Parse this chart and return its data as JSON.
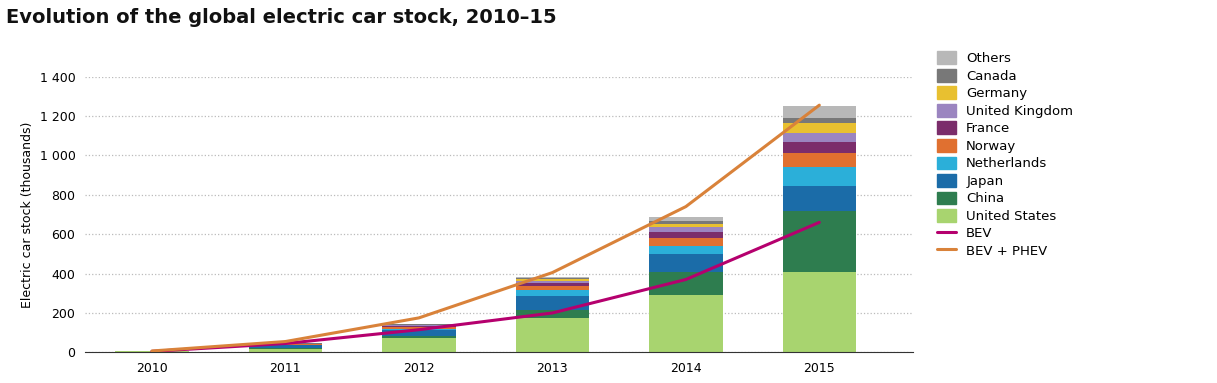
{
  "title": "Evolution of the global electric car stock, 2010–15",
  "ylabel": "Electric car stock (thousands)",
  "years": [
    2010,
    2011,
    2012,
    2013,
    2014,
    2015
  ],
  "categories": [
    "United States",
    "China",
    "Japan",
    "Netherlands",
    "Norway",
    "France",
    "United Kingdom",
    "Germany",
    "Canada",
    "Others"
  ],
  "colors": [
    "#a8d46f",
    "#2e7d4f",
    "#1b6ca8",
    "#2bafd9",
    "#e07030",
    "#7b2d6b",
    "#9b85c0",
    "#e8c030",
    "#787878",
    "#b8b8b8"
  ],
  "bar_data": {
    "United States": [
      5,
      17,
      71,
      172,
      290,
      410
    ],
    "China": [
      1,
      5,
      13,
      45,
      120,
      310
    ],
    "Japan": [
      1,
      15,
      28,
      68,
      88,
      124
    ],
    "Netherlands": [
      0,
      1,
      9,
      30,
      43,
      95
    ],
    "Norway": [
      0,
      2,
      8,
      20,
      42,
      73
    ],
    "France": [
      0,
      2,
      6,
      18,
      30,
      55
    ],
    "United Kingdom": [
      0,
      1,
      3,
      10,
      23,
      48
    ],
    "Germany": [
      0,
      1,
      2,
      7,
      18,
      50
    ],
    "Canada": [
      0,
      1,
      2,
      5,
      13,
      27
    ],
    "Others": [
      0,
      1,
      3,
      8,
      20,
      58
    ]
  },
  "bev_line": [
    5,
    45,
    115,
    200,
    370,
    660
  ],
  "bev_phev_line": [
    7,
    55,
    175,
    405,
    740,
    1255
  ],
  "bev_color": "#b5006e",
  "bev_phev_color": "#d9823a",
  "background_color": "#ffffff",
  "grid_color": "#bbbbbb",
  "ylim": [
    0,
    1400
  ],
  "ytick_values": [
    0,
    200,
    400,
    600,
    800,
    1000,
    1200,
    1400
  ],
  "ytick_labels": [
    "0",
    "200",
    "400",
    "600",
    "800",
    "1 000",
    "1 200",
    "1 400"
  ],
  "title_fontsize": 14,
  "axis_label_fontsize": 9,
  "tick_fontsize": 9,
  "legend_fontsize": 9.5,
  "bar_width": 0.55
}
